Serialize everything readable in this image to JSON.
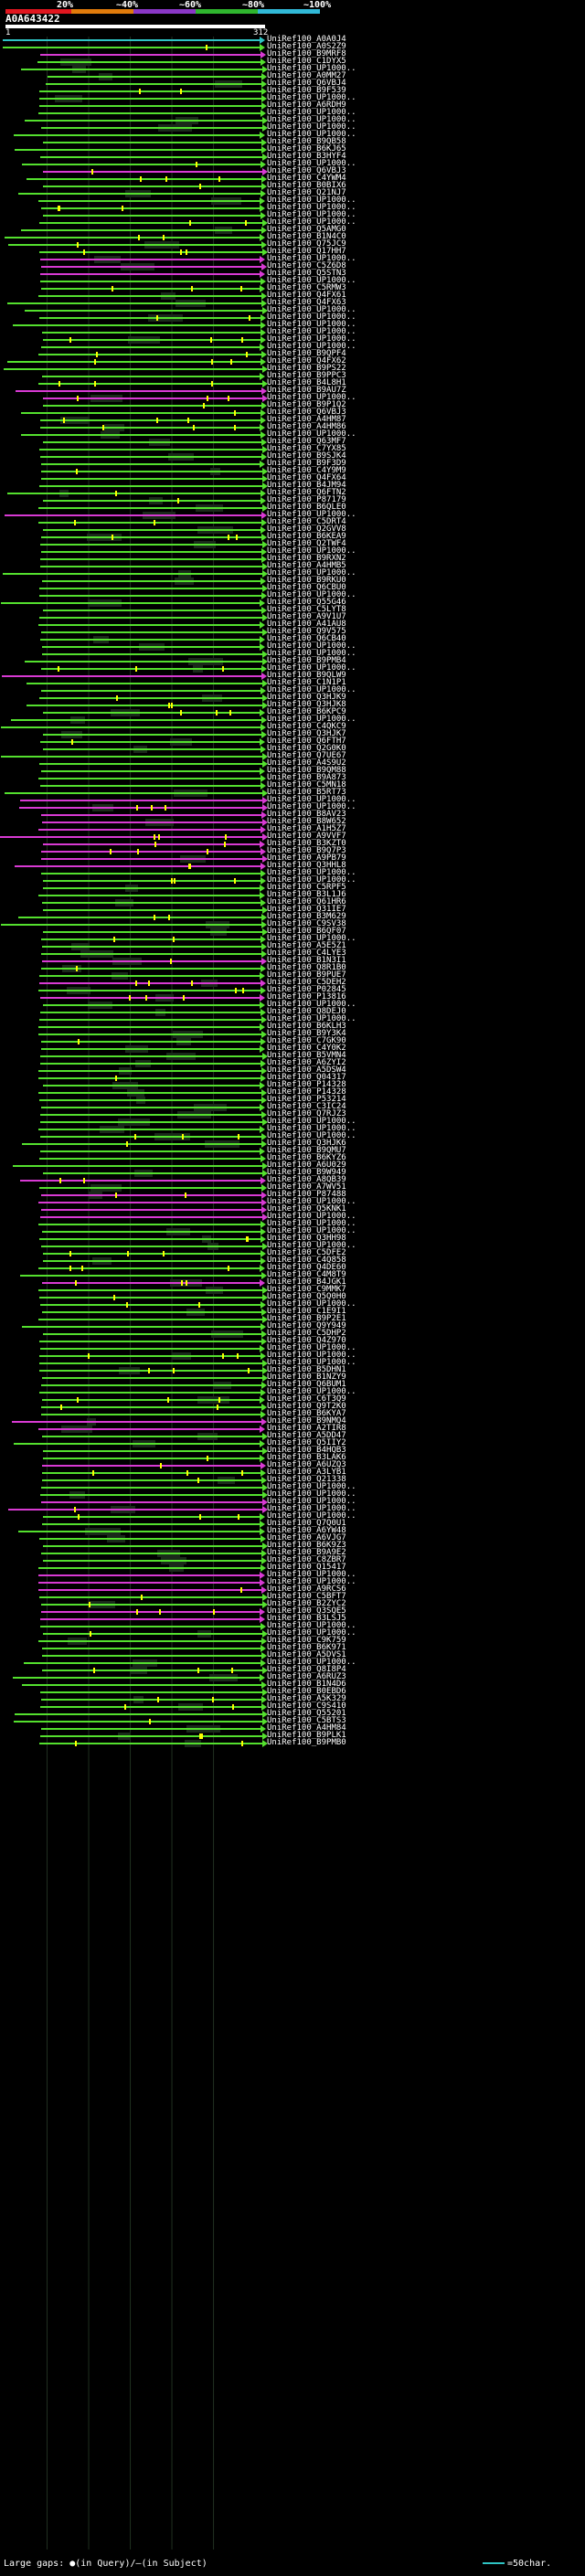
{
  "scale": {
    "labels": [
      "20%",
      "~40%",
      "~60%",
      "~80%",
      "~100%"
    ],
    "colors": [
      "#e0161f",
      "#e07b0b",
      "#8a37c6",
      "#2fb52e",
      "#31b9d8"
    ]
  },
  "query": {
    "id": "A0A643422",
    "start": "1",
    "end": "312"
  },
  "colors": {
    "green": "#54e02e",
    "magenta": "#d83ad3",
    "cyan": "#2ec4c4",
    "gap": "#ffff00"
  },
  "hits": [
    "UniRef100_A0A0J4",
    "UniRef100_A0S2Z9",
    "UniRef100_B9MRF8",
    "UniRef100_C1DYX5",
    "UniRef100_UP1000..",
    "UniRef100_A0MM27",
    "UniRef100_Q6VBJ4",
    "UniRef100_B9F539",
    "UniRef100_UP1000..",
    "UniRef100_A6RDH9",
    "UniRef100_UP1000..",
    "UniRef100_UP1000..",
    "UniRef100_UP1000..",
    "UniRef100_UP1000..",
    "UniRef100_B9QB58",
    "UniRef100_B6KJ65",
    "UniRef100_B3HYF4",
    "UniRef100_UP1000..",
    "UniRef100_Q6VBJ3",
    "UniRef100_C4YWM4",
    "UniRef100_B0BIX6",
    "UniRef100_Q21NJ7",
    "UniRef100_UP1000..",
    "UniRef100_UP1000..",
    "UniRef100_UP1000..",
    "UniRef100_UP1000..",
    "UniRef100_Q5AMG0",
    "UniRef100_B1N4C0",
    "UniRef100_Q75JC9",
    "UniRef100_Q17HH7",
    "UniRef100_UP1000..",
    "UniRef100_C5Z6D8",
    "UniRef100_Q5STN3",
    "UniRef100_UP1000..",
    "UniRef100_C5RMW3",
    "UniRef100_Q4FX61",
    "UniRef100_Q4FX63",
    "UniRef100_UP1000..",
    "UniRef100_UP1000..",
    "UniRef100_UP1000..",
    "UniRef100_UP1000..",
    "UniRef100_UP1000..",
    "UniRef100_UP1000..",
    "UniRef100_B9QPF4",
    "UniRef100_Q4FX62",
    "UniRef100_B9PS22",
    "UniRef100_B9PPC3",
    "UniRef100_B4L8H1",
    "UniRef100_B9AU7Z",
    "UniRef100_UP1000..",
    "UniRef100_B9P1Q2",
    "UniRef100_Q6VBJ3",
    "UniRef100_A4HM87",
    "UniRef100_A4HM86",
    "UniRef100_UP1000..",
    "UniRef100_Q63MF7",
    "UniRef100_C7YX85",
    "UniRef100_B9SJK4",
    "UniRef100_B9F3D9",
    "UniRef100_C4Y9M9",
    "UniRef100_Q4FX64",
    "UniRef100_B4JM94",
    "UniRef100_Q6FTN2",
    "UniRef100_P87179",
    "UniRef100_B6QLE0",
    "UniRef100_UP1000..",
    "UniRef100_C5DRT4",
    "UniRef100_Q2GVV8",
    "UniRef100_B6KEA9",
    "UniRef100_Q2TWF4",
    "UniRef100_UP1000..",
    "UniRef100_B9RXN2",
    "UniRef100_A4HMB5",
    "UniRef100_UP1000..",
    "UniRef100_B9RKU0",
    "UniRef100_Q6CBU0",
    "UniRef100_UP1000..",
    "UniRef100_Q55G46",
    "UniRef100_C5LYT8",
    "UniRef100_A9V1U7",
    "UniRef100_A41AU8",
    "UniRef100_Q9V575",
    "UniRef100_Q6CB40",
    "UniRef100_UP1000..",
    "UniRef100_UP1000..",
    "UniRef100_B9PMB4",
    "UniRef100_UP1000..",
    "UniRef100_B9QLW9",
    "UniRef100_C1N1P1",
    "UniRef100_UP1000..",
    "UniRef100_Q3HJK9",
    "UniRef100_Q3HJK8",
    "UniRef100_B6KPC9",
    "UniRef100_UP1000..",
    "UniRef100_C4QKC9",
    "UniRef100_Q3HJK7",
    "UniRef100_Q6FTH7",
    "UniRef100_Q2G0K0",
    "UniRef100_Q7UE67",
    "UniRef100_A4S9U2",
    "UniRef100_B9QM88",
    "UniRef100_B9A873",
    "UniRef100_C5MN18",
    "UniRef100_B5RT73",
    "UniRef100_UP1000..",
    "UniRef100_UP1000..",
    "UniRef100_B8AV23",
    "UniRef100_B8W652",
    "UniRef100_A1H5Z7",
    "UniRef100_A9VVF7",
    "UniRef100_B3KZT0",
    "UniRef100_B9Q7P3",
    "UniRef100_A9PB79",
    "UniRef100_Q3HHL8",
    "UniRef100_UP1000..",
    "UniRef100_UP1000..",
    "UniRef100_C5RPF5",
    "UniRef100_B3L1J6",
    "UniRef100_Q61HR6",
    "UniRef100_Q31IE7",
    "UniRef100_B3M629",
    "UniRef100_C9SV38",
    "UniRef100_B6QF07",
    "UniRef100_UP1000..",
    "UniRef100_A5E5Z1",
    "UniRef100_C4LYE3",
    "UniRef100_B1N3I1",
    "UniRef100_Q8R1B0",
    "UniRef100_B9PUE7",
    "UniRef100_C5DEH2",
    "UniRef100_P02845",
    "UniRef100_P13816",
    "UniRef100_UP1000..",
    "UniRef100_Q8DEJ0",
    "UniRef100_UP1000..",
    "UniRef100_B6KLH3",
    "UniRef100_B9Y3K4",
    "UniRef100_C7GK90",
    "UniRef100_C4Y0K2",
    "UniRef100_B5VMN4",
    "UniRef100_A6ZYI2",
    "UniRef100_A5DSW4",
    "UniRef100_Q04317",
    "UniRef100_P14328",
    "UniRef100_P14328",
    "UniRef100_P53214",
    "UniRef100_C3IC24",
    "UniRef100_Q7RJZ3",
    "UniRef100_UP1000..",
    "UniRef100_UP1000..",
    "UniRef100_UP1000..",
    "UniRef100_Q3HJK6",
    "UniRef100_B9QMU7",
    "UniRef100_B6KYZ6",
    "UniRef100_A6U029",
    "UniRef100_B9W949",
    "UniRef100_A8QB39",
    "UniRef100_A7WV51",
    "UniRef100_P87488",
    "UniRef100_UP1000..",
    "UniRef100_Q5KNK1",
    "UniRef100_UP1000..",
    "UniRef100_UP1000..",
    "UniRef100_UP1000..",
    "UniRef100_Q3HH98",
    "UniRef100_UP1000..",
    "UniRef100_C5DFE2",
    "UniRef100_C4Q858",
    "UniRef100_Q4DE60",
    "UniRef100_C4M8T9",
    "UniRef100_B4JGK1",
    "UniRef100_C9MMK7",
    "UniRef100_Q5Q0H0",
    "UniRef100_UP1000..",
    "UniRef100_C1E9I1",
    "UniRef100_B9P2E1",
    "UniRef100_Q9Y949",
    "UniRef100_C5DHP2",
    "UniRef100_Q4Z970",
    "UniRef100_UP1000..",
    "UniRef100_UP1000..",
    "UniRef100_UP1000..",
    "UniRef100_B5DHN1",
    "UniRef100_B1NZY9",
    "UniRef100_Q6BUM1",
    "UniRef100_UP1000..",
    "UniRef100_C6T3Q9",
    "UniRef100_Q9T2K0",
    "UniRef100_B6KYA7",
    "UniRef100_B9NMQ4",
    "UniRef100_A2TIR8",
    "UniRef100_A5DD47",
    "UniRef100_Q5IIY2",
    "UniRef100_B4HQB3",
    "UniRef100_B3LAK6",
    "UniRef100_A6UZQ3",
    "UniRef100_A3LYB1",
    "UniRef100_Q21338",
    "UniRef100_UP1000..",
    "UniRef100_UP1000..",
    "UniRef100_UP1000..",
    "UniRef100_UP1000..",
    "UniRef100_UP1000..",
    "UniRef100_Q7Q0U1",
    "UniRef100_A6YW48",
    "UniRef100_A6VJG7",
    "UniRef100_B6K9Z3",
    "UniRef100_B9A9E2",
    "UniRef100_C8ZBR7",
    "UniRef100_Q15417",
    "UniRef100_UP1000..",
    "UniRef100_UP1000..",
    "UniRef100_A9RCS6",
    "UniRef100_C5BFT7",
    "UniRef100_B2ZYC2",
    "UniRef100_Q3SQE5",
    "UniRef100_B3LSJ5",
    "UniRef100_UP1000..",
    "UniRef100_UP1000..",
    "UniRef100_C9K759",
    "UniRef100_B6K971",
    "UniRef100_A5DVS1",
    "UniRef100_UP1000..",
    "UniRef100_Q8I8P4",
    "UniRef100_A6RUZ3",
    "UniRef100_B1N4D6",
    "UniRef100_B0EBD6",
    "UniRef100_A5K329",
    "UniRef100_C9S410",
    "UniRef100_Q55201",
    "UniRef100_C5BTS3",
    "UniRef100_A4HM84",
    "UniRef100_B9PLK1",
    "UniRef100_B9PMB0"
  ],
  "legend": {
    "gaps": "Large gaps: ●(in Query)/—(in Subject)",
    "scale": "=50char."
  }
}
